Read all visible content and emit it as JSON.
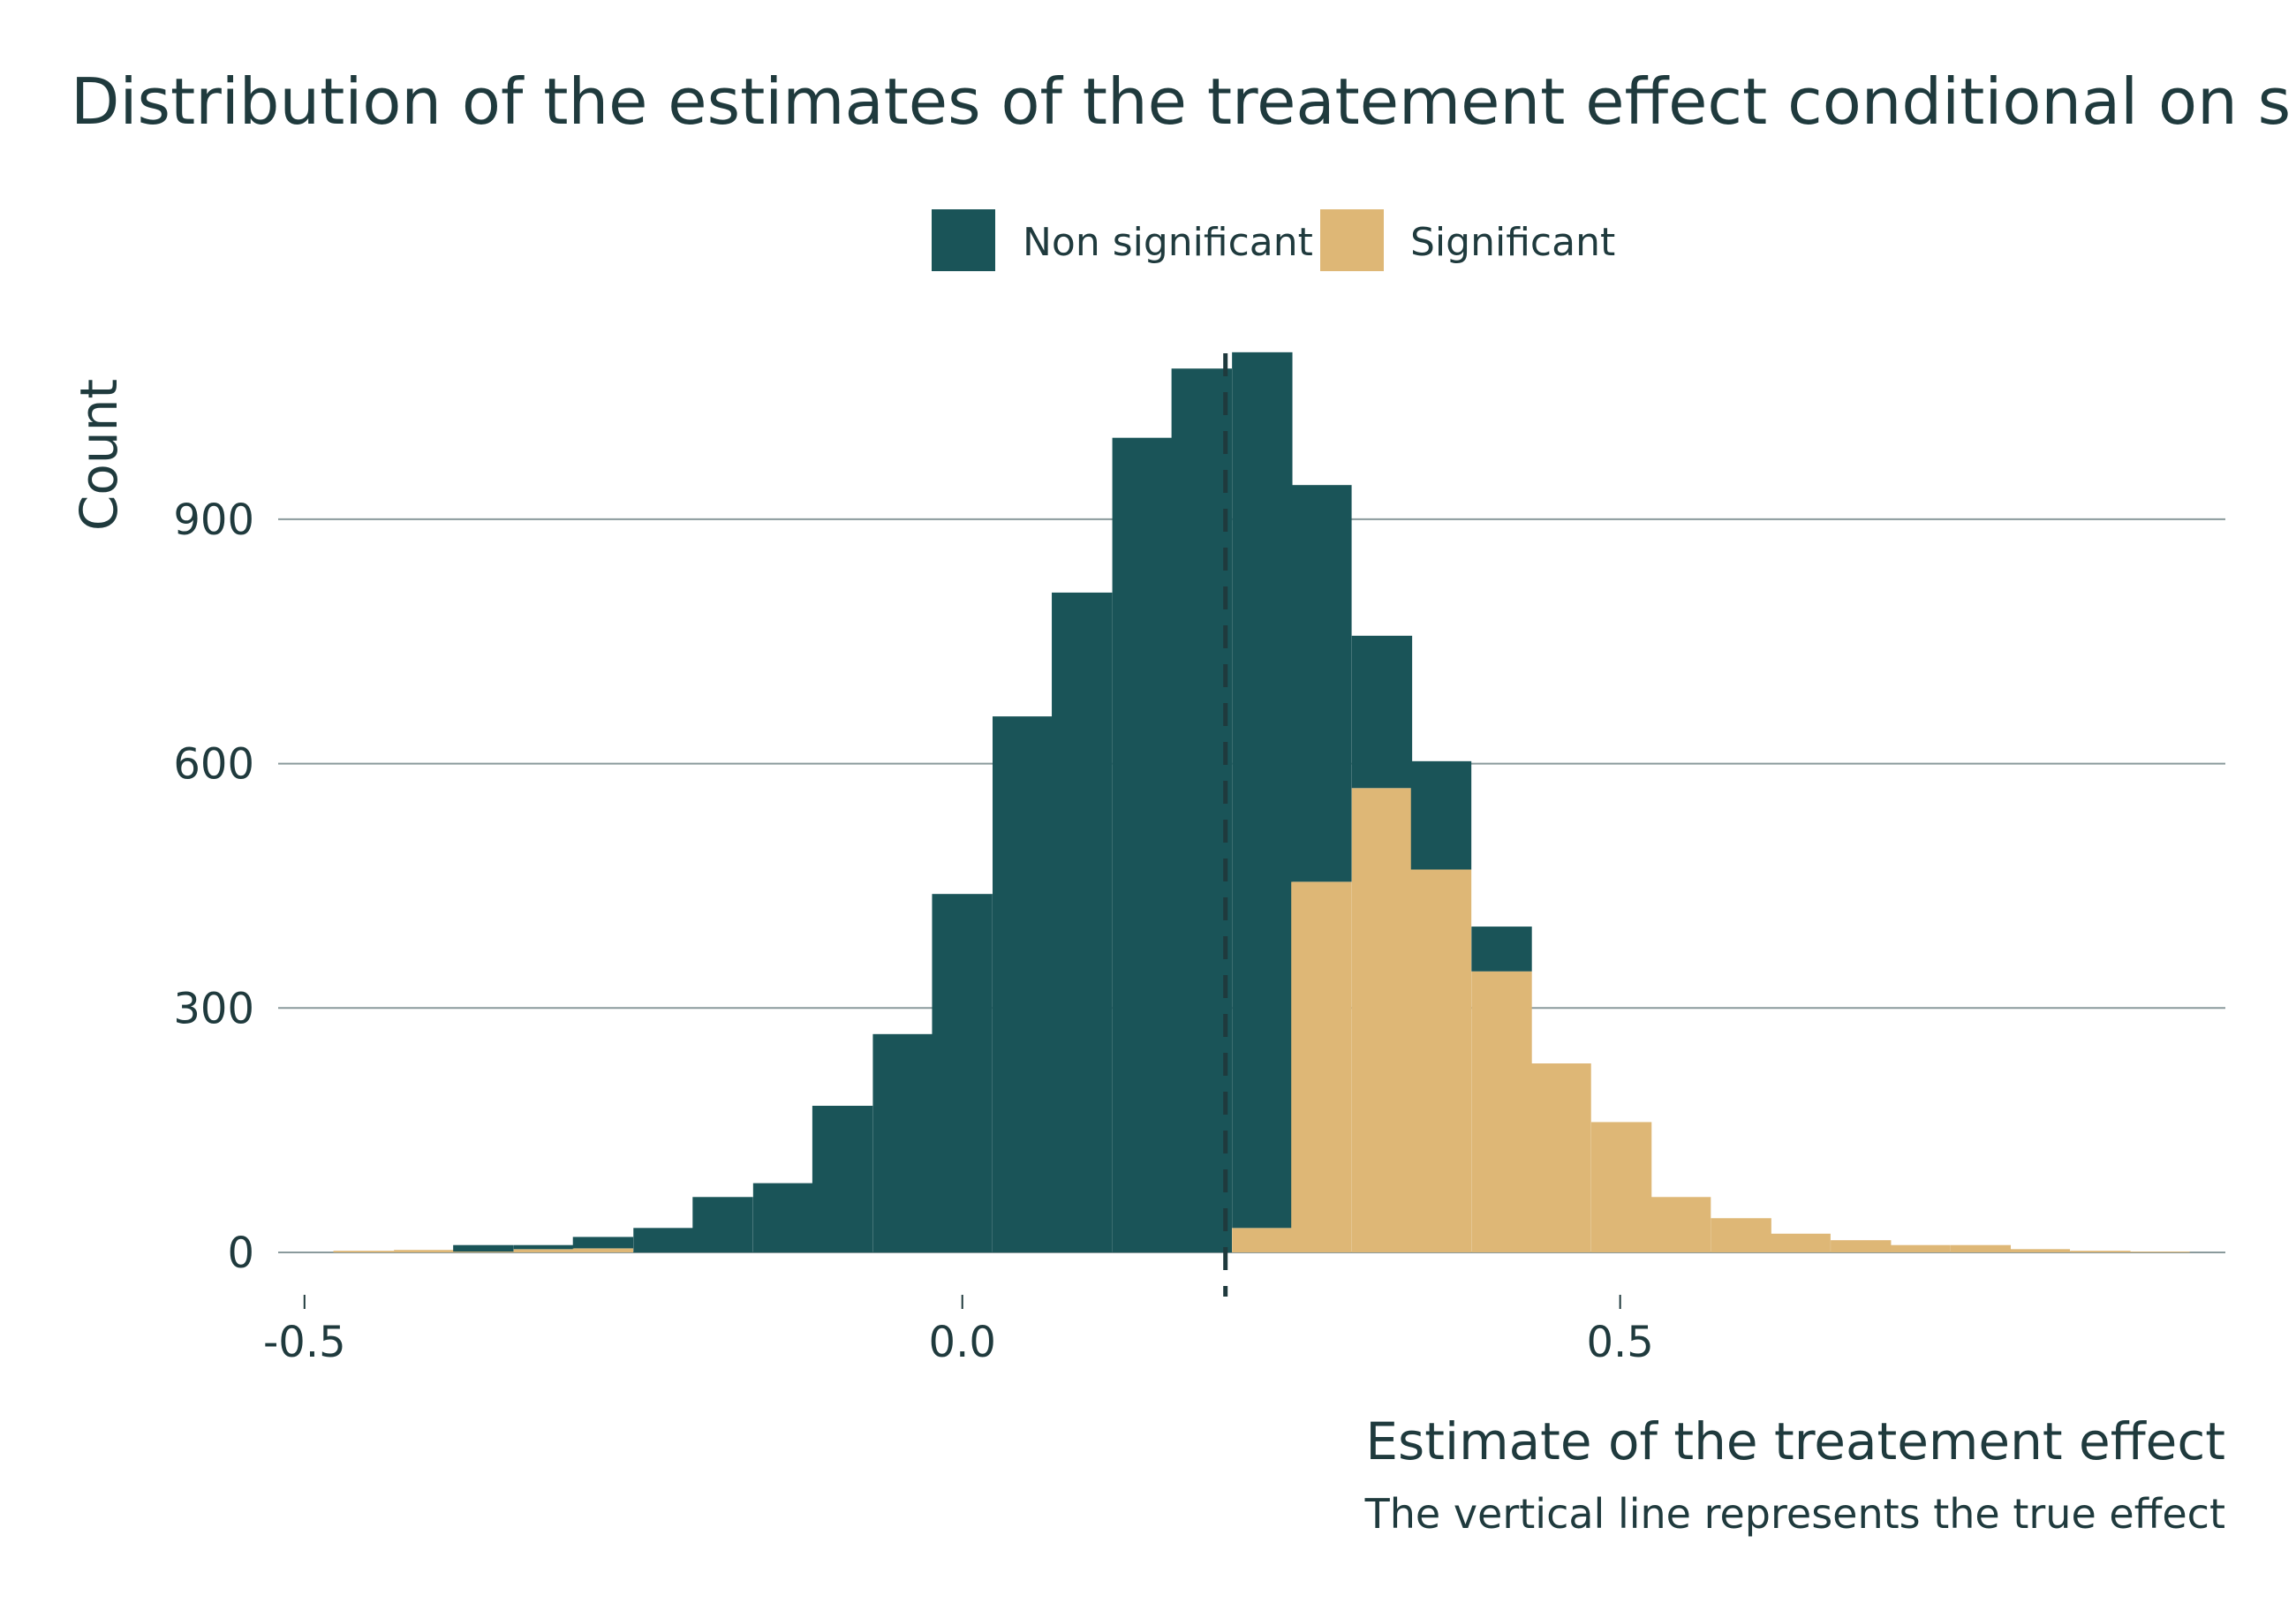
{
  "colors": {
    "non_significant": "#1a5458",
    "significant": "#deb776",
    "text": "#1f3a3d",
    "grid": "#8a9a9c",
    "true_effect_line": "#1f3a3d"
  },
  "chart_data": {
    "type": "bar",
    "subtype": "stacked-histogram",
    "title": "Distribution of the estimates of the treatement effect conditional on si",
    "xlabel": "Estimate of the treatement effect",
    "ylabel": "Count",
    "caption": "The vertical line represents the true effect",
    "legend": {
      "placement": "top",
      "entries": [
        "Non significant",
        "Significant"
      ]
    },
    "xlim": [
      -0.52,
      0.96
    ],
    "ylim": [
      0,
      1120
    ],
    "x_ticks": [
      -0.5,
      0.0,
      0.5
    ],
    "x_tick_labels": [
      "-0.5",
      "0.0",
      "0.5"
    ],
    "y_ticks": [
      0,
      300,
      600,
      900
    ],
    "y_tick_labels": [
      "0",
      "300",
      "600",
      "900"
    ],
    "grid": {
      "horizontal": true,
      "vertical": false
    },
    "true_effect": 0.2,
    "bin_width": 0.0455,
    "bin_starts": [
      -0.478,
      -0.432,
      -0.387,
      -0.341,
      -0.296,
      -0.25,
      -0.205,
      -0.159,
      -0.114,
      -0.068,
      -0.023,
      0.023,
      0.068,
      0.114,
      0.159,
      0.205,
      0.25,
      0.296,
      0.341,
      0.387,
      0.432,
      0.478,
      0.523,
      0.569,
      0.614,
      0.66,
      0.705,
      0.751,
      0.796,
      0.842,
      0.887
    ],
    "series": [
      {
        "name": "Significant",
        "values": [
          2,
          3,
          1,
          4,
          5,
          0,
          0,
          0,
          0,
          0,
          0,
          0,
          0,
          0,
          0,
          30,
          455,
          570,
          470,
          345,
          232,
          160,
          68,
          42,
          23,
          15,
          9,
          9,
          4,
          2,
          1
        ]
      },
      {
        "name": "Non significant",
        "values": [
          0,
          0,
          8,
          5,
          14,
          30,
          68,
          85,
          180,
          268,
          440,
          658,
          810,
          1000,
          1085,
          1075,
          487,
          187,
          133,
          55,
          0,
          0,
          0,
          0,
          0,
          0,
          0,
          0,
          0,
          0,
          0
        ]
      }
    ]
  }
}
